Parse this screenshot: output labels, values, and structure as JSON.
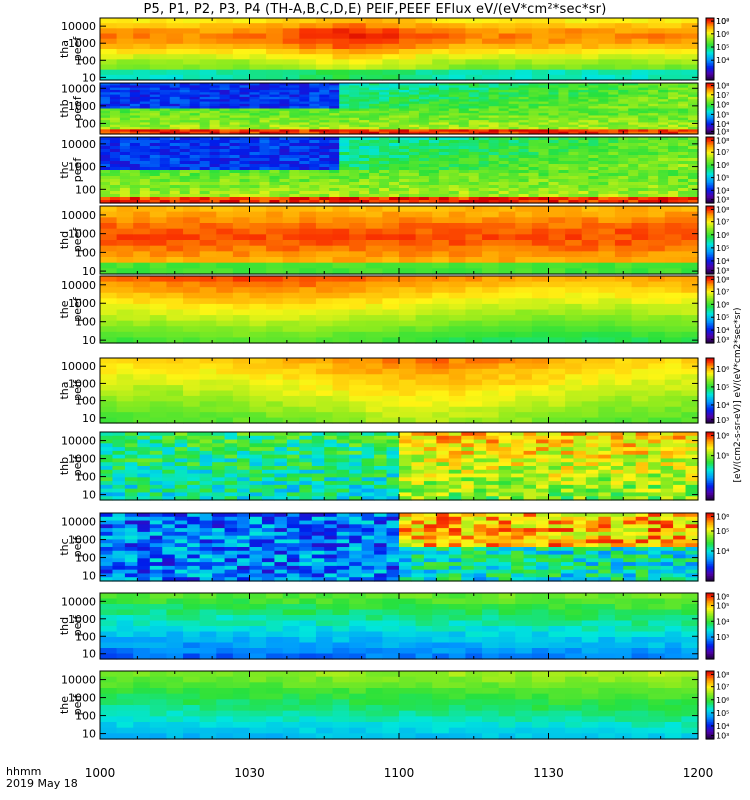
{
  "title": "P5, P1, P2, P3, P4 (TH-A,B,C,D,E) PEIF,PEEF EFlux eV/(eV*cm²*sec*sr)",
  "colorbar_unit_top": "eV/(eV*cm2*sec*sr)",
  "colorbar_unit_bottom": "[eV/(cm2-s-sr-eV)]",
  "time_axis": {
    "label_line1": "hhmm",
    "label_line2": "2019 May 18",
    "ticks": [
      "1000",
      "1030",
      "1100",
      "1130",
      "1200"
    ],
    "minor_ticks_per_interval": 3
  },
  "chart_data": [
    {
      "type": "heatmap",
      "ylabel": [
        "tha",
        "peef"
      ],
      "yticks": [
        "10",
        "100",
        "1000",
        "10000"
      ],
      "yscale": "log",
      "ylim": [
        7,
        30000
      ],
      "xlim": [
        "1000",
        "1200"
      ],
      "colorbar": {
        "ticks": [
          "10⁴",
          "10⁵",
          "10⁶",
          "10⁷",
          "10⁸"
        ],
        "log_range": [
          3.5,
          8.2
        ]
      },
      "description_values": {
        "peak_log_flux": 7.9,
        "background_log_flux": 6.0,
        "bias_time_frac": 0.45
      }
    },
    {
      "type": "heatmap",
      "ylabel": [
        "thb",
        "peef"
      ],
      "yticks": [
        "100",
        "1000",
        "10000"
      ],
      "yscale": "log",
      "ylim": [
        25,
        20000
      ],
      "xlim": [
        "1000",
        "1200"
      ],
      "colorbar": {
        "ticks": [
          "10³",
          "10⁴",
          "10⁵",
          "10⁶",
          "10⁷",
          "10⁸"
        ],
        "log_range": [
          3,
          8.2
        ]
      },
      "description_values": {
        "transition_time": "1048",
        "pre_log_flux_high_energy": 3.3,
        "post_log_flux_high_energy": 5.5
      }
    },
    {
      "type": "heatmap",
      "ylabel": [
        "thc",
        "peef"
      ],
      "yticks": [
        "100",
        "1000",
        "10000"
      ],
      "yscale": "log",
      "ylim": [
        25,
        20000
      ],
      "xlim": [
        "1000",
        "1200"
      ],
      "colorbar": {
        "ticks": [
          "10³",
          "10⁴",
          "10⁵",
          "10⁶",
          "10⁷",
          "10⁸"
        ],
        "log_range": [
          3,
          8.2
        ]
      },
      "description_values": {
        "transition_time": "1048",
        "pre_log_flux_high_energy": 3.3,
        "post_log_flux_high_energy": 5.5
      }
    },
    {
      "type": "heatmap",
      "ylabel": [
        "thd",
        "peef"
      ],
      "yticks": [
        "10",
        "100",
        "1000",
        "10000"
      ],
      "yscale": "log",
      "ylim": [
        7,
        30000
      ],
      "xlim": [
        "1000",
        "1200"
      ],
      "colorbar": {
        "ticks": [
          "10³",
          "10⁴",
          "10⁵",
          "10⁶",
          "10⁷",
          "10⁸"
        ],
        "log_range": [
          3,
          8.2
        ]
      },
      "description_values": {
        "peak_log_flux": 7.9,
        "low_energy_log_flux": 6.2
      }
    },
    {
      "type": "heatmap",
      "ylabel": [
        "the",
        "peef"
      ],
      "yticks": [
        "10",
        "100",
        "1000",
        "10000"
      ],
      "yscale": "log",
      "ylim": [
        7,
        30000
      ],
      "xlim": [
        "1000",
        "1200"
      ],
      "colorbar": {
        "ticks": [
          "10³",
          "10⁴",
          "10⁵",
          "10⁶",
          "10⁷",
          "10⁸"
        ],
        "log_range": [
          3,
          8.2
        ]
      },
      "description_values": {
        "peak_log_flux": 7.7,
        "low_energy_log_flux": 5.6
      }
    },
    {
      "type": "heatmap",
      "ylabel": [
        "tha",
        "peif"
      ],
      "yticks": [
        "10",
        "100",
        "1000",
        "10000"
      ],
      "yscale": "log",
      "ylim": [
        5,
        30000
      ],
      "xlim": [
        "1000",
        "1200"
      ],
      "colorbar": {
        "ticks": [
          "10³",
          "10⁴",
          "10⁵",
          "10⁶"
        ],
        "log_range": [
          3,
          6.6
        ]
      },
      "description_values": {
        "background_log_flux": 5.0,
        "peak_log_flux": 6.1
      }
    },
    {
      "type": "heatmap",
      "ylabel": [
        "thb",
        "peif"
      ],
      "yticks": [
        "10",
        "100",
        "1000",
        "10000"
      ],
      "yscale": "log",
      "ylim": [
        5,
        30000
      ],
      "xlim": [
        "1000",
        "1200"
      ],
      "colorbar": {
        "ticks": [
          "10⁵",
          "10⁶"
        ],
        "log_range": [
          4.5,
          6.8
        ]
      },
      "description_values": {
        "transition_time": "1100",
        "pre_log_flux": 5.2,
        "post_log_flux": 6.2
      }
    },
    {
      "type": "heatmap",
      "ylabel": [
        "thc",
        "peif"
      ],
      "yticks": [
        "10",
        "100",
        "1000",
        "10000"
      ],
      "yscale": "log",
      "ylim": [
        5,
        30000
      ],
      "xlim": [
        "1000",
        "1200"
      ],
      "colorbar": {
        "ticks": [
          "10⁴",
          "10⁵",
          "10⁶"
        ],
        "log_range": [
          3.5,
          6.9
        ]
      },
      "description_values": {
        "transition_time": "1100",
        "pre_log_flux": 4.2,
        "post_log_flux": 6.2
      }
    },
    {
      "type": "heatmap",
      "ylabel": [
        "thd",
        "peif"
      ],
      "yticks": [
        "10",
        "100",
        "1000",
        "10000"
      ],
      "yscale": "log",
      "ylim": [
        5,
        30000
      ],
      "xlim": [
        "1000",
        "1200"
      ],
      "colorbar": {
        "ticks": [
          "10³",
          "10⁴",
          "10⁵",
          "10⁶"
        ],
        "log_range": [
          2.6,
          6.8
        ]
      },
      "description_values": {
        "low_energy_log_flux": 3.6,
        "high_energy_log_flux": 5.6
      }
    },
    {
      "type": "heatmap",
      "ylabel": [
        "the",
        "peif"
      ],
      "yticks": [
        "10",
        "100",
        "1000",
        "10000"
      ],
      "yscale": "log",
      "ylim": [
        5,
        30000
      ],
      "xlim": [
        "1000",
        "1200"
      ],
      "colorbar": {
        "ticks": [
          "10³",
          "10⁴",
          "10⁵",
          "10⁶",
          "10⁷",
          "10⁸"
        ],
        "log_range": [
          3,
          8.2
        ]
      },
      "description_values": {
        "low_energy_log_flux": 4.6,
        "high_energy_log_flux": 6.0
      }
    }
  ]
}
